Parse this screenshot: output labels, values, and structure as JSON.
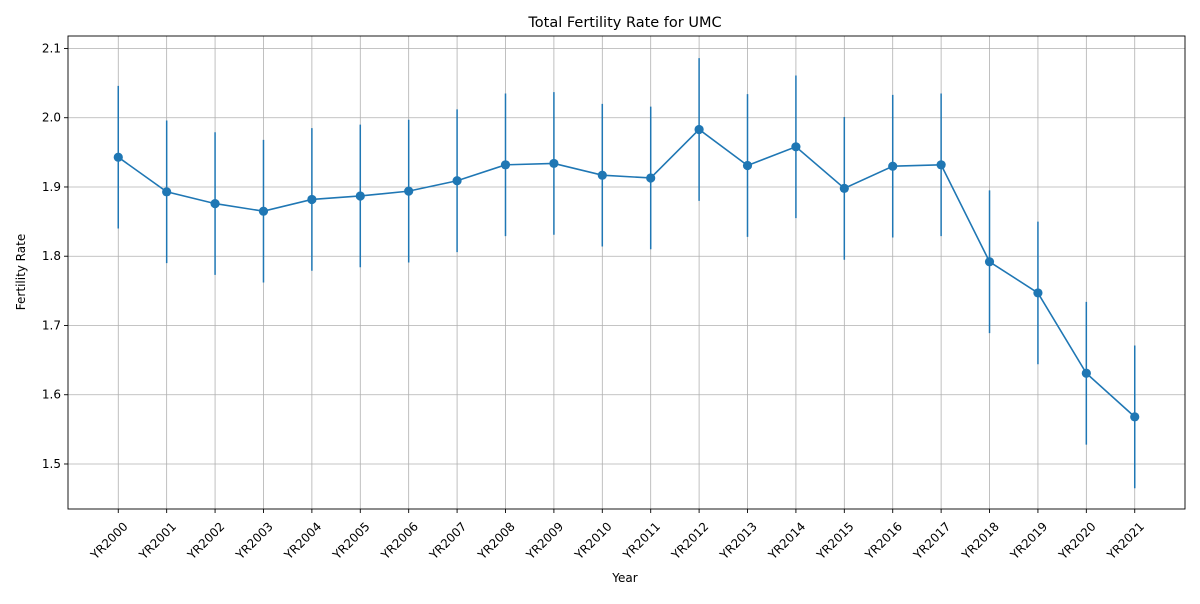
{
  "chart_data": {
    "type": "line",
    "title": "Total Fertility Rate for UMC",
    "xlabel": "Year",
    "ylabel": "Fertility Rate",
    "ylim": [
      1.435,
      2.118
    ],
    "yticks": [
      1.5,
      1.6,
      1.7,
      1.8,
      1.9,
      2.0,
      2.1
    ],
    "ytick_labels": [
      "1.5",
      "1.6",
      "1.7",
      "1.8",
      "1.9",
      "2.0",
      "2.1"
    ],
    "grid": true,
    "x_tick_rotation_deg": 45,
    "categories": [
      "YR2000",
      "YR2001",
      "YR2002",
      "YR2003",
      "YR2004",
      "YR2005",
      "YR2006",
      "YR2007",
      "YR2008",
      "YR2009",
      "YR2010",
      "YR2011",
      "YR2012",
      "YR2013",
      "YR2014",
      "YR2015",
      "YR2016",
      "YR2017",
      "YR2018",
      "YR2019",
      "YR2020",
      "YR2021"
    ],
    "series": [
      {
        "values": [
          1.943,
          1.893,
          1.876,
          1.865,
          1.882,
          1.887,
          1.894,
          1.909,
          1.932,
          1.934,
          1.917,
          1.913,
          1.983,
          1.931,
          1.958,
          1.898,
          1.93,
          1.932,
          1.792,
          1.747,
          1.631,
          1.568
        ],
        "error": [
          0.103,
          0.103,
          0.103,
          0.103,
          0.103,
          0.103,
          0.103,
          0.103,
          0.103,
          0.103,
          0.103,
          0.103,
          0.103,
          0.103,
          0.103,
          0.103,
          0.103,
          0.103,
          0.103,
          0.103,
          0.103,
          0.103
        ],
        "color": "#1f77b4",
        "marker": "circle"
      }
    ]
  },
  "colors": {
    "series": "#1f77b4",
    "grid": "#b0b0b0",
    "axis": "#000000"
  }
}
